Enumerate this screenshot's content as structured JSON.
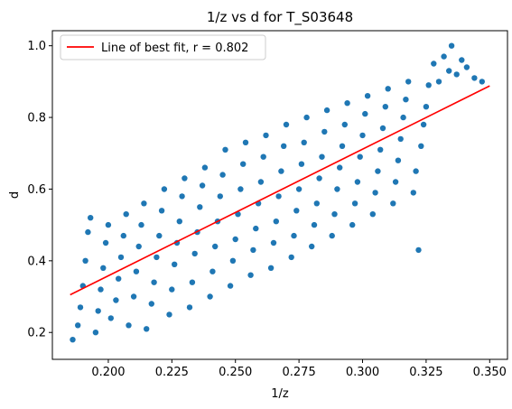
{
  "chart_data": {
    "type": "scatter",
    "title": "1/z vs d for T_S03648",
    "xlabel": "1/z",
    "ylabel": "d",
    "xlim": [
      0.178,
      0.357
    ],
    "ylim": [
      0.125,
      1.042
    ],
    "xticks": [
      0.2,
      0.225,
      0.25,
      0.275,
      0.3,
      0.325,
      0.35
    ],
    "xtick_labels": [
      "0.200",
      "0.225",
      "0.250",
      "0.275",
      "0.300",
      "0.325",
      "0.350"
    ],
    "yticks": [
      0.2,
      0.4,
      0.6,
      0.8,
      1.0
    ],
    "ytick_labels": [
      "0.2",
      "0.4",
      "0.6",
      "0.8",
      "1.0"
    ],
    "grid": false,
    "legend_position": "upper-left",
    "series": [
      {
        "kind": "scatter",
        "color": "#1f77b4",
        "points": [
          [
            0.186,
            0.18
          ],
          [
            0.188,
            0.22
          ],
          [
            0.189,
            0.27
          ],
          [
            0.19,
            0.33
          ],
          [
            0.191,
            0.4
          ],
          [
            0.192,
            0.48
          ],
          [
            0.193,
            0.52
          ],
          [
            0.195,
            0.2
          ],
          [
            0.196,
            0.26
          ],
          [
            0.197,
            0.32
          ],
          [
            0.198,
            0.38
          ],
          [
            0.199,
            0.45
          ],
          [
            0.2,
            0.5
          ],
          [
            0.201,
            0.24
          ],
          [
            0.203,
            0.29
          ],
          [
            0.204,
            0.35
          ],
          [
            0.205,
            0.41
          ],
          [
            0.206,
            0.47
          ],
          [
            0.207,
            0.53
          ],
          [
            0.208,
            0.22
          ],
          [
            0.21,
            0.3
          ],
          [
            0.211,
            0.37
          ],
          [
            0.212,
            0.44
          ],
          [
            0.213,
            0.5
          ],
          [
            0.214,
            0.56
          ],
          [
            0.215,
            0.21
          ],
          [
            0.217,
            0.28
          ],
          [
            0.218,
            0.34
          ],
          [
            0.219,
            0.41
          ],
          [
            0.22,
            0.47
          ],
          [
            0.221,
            0.54
          ],
          [
            0.222,
            0.6
          ],
          [
            0.224,
            0.25
          ],
          [
            0.225,
            0.32
          ],
          [
            0.226,
            0.39
          ],
          [
            0.227,
            0.45
          ],
          [
            0.228,
            0.51
          ],
          [
            0.229,
            0.58
          ],
          [
            0.23,
            0.63
          ],
          [
            0.232,
            0.27
          ],
          [
            0.233,
            0.34
          ],
          [
            0.234,
            0.42
          ],
          [
            0.235,
            0.48
          ],
          [
            0.236,
            0.55
          ],
          [
            0.237,
            0.61
          ],
          [
            0.238,
            0.66
          ],
          [
            0.24,
            0.3
          ],
          [
            0.241,
            0.37
          ],
          [
            0.242,
            0.44
          ],
          [
            0.243,
            0.51
          ],
          [
            0.244,
            0.58
          ],
          [
            0.245,
            0.64
          ],
          [
            0.246,
            0.71
          ],
          [
            0.248,
            0.33
          ],
          [
            0.249,
            0.4
          ],
          [
            0.25,
            0.46
          ],
          [
            0.251,
            0.53
          ],
          [
            0.252,
            0.6
          ],
          [
            0.253,
            0.67
          ],
          [
            0.254,
            0.73
          ],
          [
            0.256,
            0.36
          ],
          [
            0.257,
            0.43
          ],
          [
            0.258,
            0.49
          ],
          [
            0.259,
            0.56
          ],
          [
            0.26,
            0.62
          ],
          [
            0.261,
            0.69
          ],
          [
            0.262,
            0.75
          ],
          [
            0.264,
            0.38
          ],
          [
            0.265,
            0.45
          ],
          [
            0.266,
            0.51
          ],
          [
            0.267,
            0.58
          ],
          [
            0.268,
            0.65
          ],
          [
            0.269,
            0.72
          ],
          [
            0.27,
            0.78
          ],
          [
            0.272,
            0.41
          ],
          [
            0.273,
            0.47
          ],
          [
            0.274,
            0.54
          ],
          [
            0.275,
            0.6
          ],
          [
            0.276,
            0.67
          ],
          [
            0.277,
            0.73
          ],
          [
            0.278,
            0.8
          ],
          [
            0.28,
            0.44
          ],
          [
            0.281,
            0.5
          ],
          [
            0.282,
            0.56
          ],
          [
            0.283,
            0.63
          ],
          [
            0.284,
            0.69
          ],
          [
            0.285,
            0.76
          ],
          [
            0.286,
            0.82
          ],
          [
            0.288,
            0.47
          ],
          [
            0.289,
            0.53
          ],
          [
            0.29,
            0.6
          ],
          [
            0.291,
            0.66
          ],
          [
            0.292,
            0.72
          ],
          [
            0.293,
            0.78
          ],
          [
            0.294,
            0.84
          ],
          [
            0.296,
            0.5
          ],
          [
            0.297,
            0.56
          ],
          [
            0.298,
            0.62
          ],
          [
            0.299,
            0.69
          ],
          [
            0.3,
            0.75
          ],
          [
            0.301,
            0.81
          ],
          [
            0.302,
            0.86
          ],
          [
            0.304,
            0.53
          ],
          [
            0.305,
            0.59
          ],
          [
            0.306,
            0.65
          ],
          [
            0.307,
            0.71
          ],
          [
            0.308,
            0.77
          ],
          [
            0.309,
            0.83
          ],
          [
            0.31,
            0.88
          ],
          [
            0.312,
            0.56
          ],
          [
            0.313,
            0.62
          ],
          [
            0.314,
            0.68
          ],
          [
            0.315,
            0.74
          ],
          [
            0.316,
            0.8
          ],
          [
            0.317,
            0.85
          ],
          [
            0.318,
            0.9
          ],
          [
            0.32,
            0.59
          ],
          [
            0.321,
            0.65
          ],
          [
            0.322,
            0.43
          ],
          [
            0.323,
            0.72
          ],
          [
            0.324,
            0.78
          ],
          [
            0.325,
            0.83
          ],
          [
            0.326,
            0.89
          ],
          [
            0.328,
            0.95
          ],
          [
            0.33,
            0.9
          ],
          [
            0.332,
            0.97
          ],
          [
            0.334,
            0.93
          ],
          [
            0.335,
            1.0
          ],
          [
            0.337,
            0.92
          ],
          [
            0.339,
            0.96
          ],
          [
            0.341,
            0.94
          ],
          [
            0.344,
            0.91
          ],
          [
            0.347,
            0.9
          ]
        ]
      },
      {
        "kind": "line",
        "name": "Line of best fit, r = 0.802",
        "color": "#ff0000",
        "x": [
          0.185,
          0.35
        ],
        "y": [
          0.305,
          0.888
        ]
      }
    ]
  }
}
